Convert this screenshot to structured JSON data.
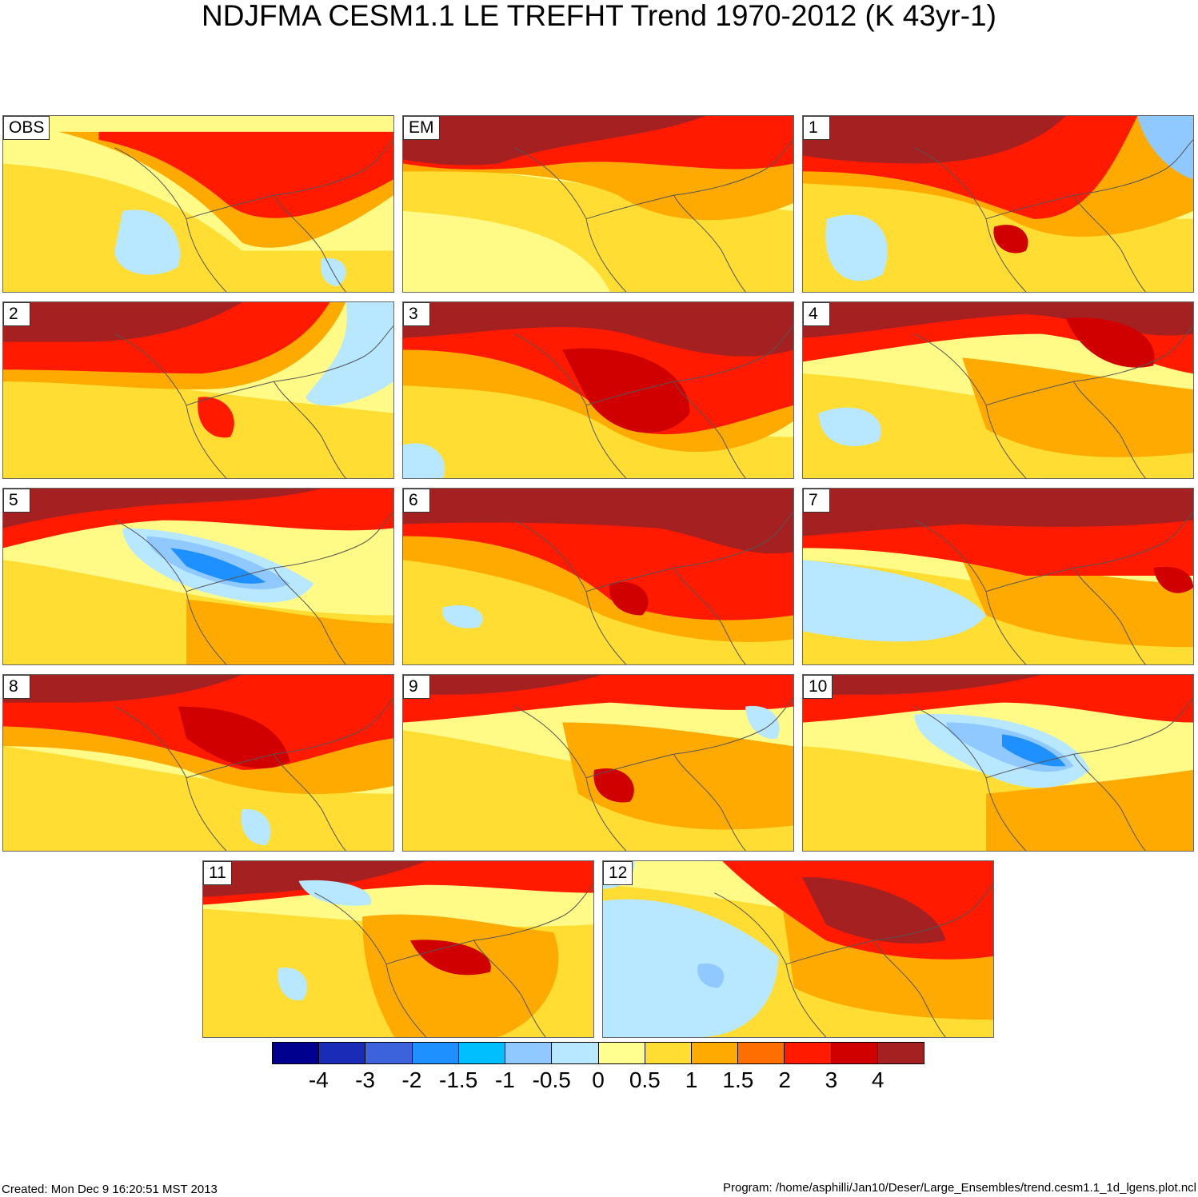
{
  "title": "NDJFMA CESM1.1 LE TREFHT Trend 1970-2012 (K 43yr-1)",
  "panels": [
    {
      "label": "OBS"
    },
    {
      "label": "EM"
    },
    {
      "label": "1"
    },
    {
      "label": "2"
    },
    {
      "label": "3"
    },
    {
      "label": "4"
    },
    {
      "label": "5"
    },
    {
      "label": "6"
    },
    {
      "label": "7"
    },
    {
      "label": "8"
    },
    {
      "label": "9"
    },
    {
      "label": "10"
    },
    {
      "label": "11"
    },
    {
      "label": "12"
    }
  ],
  "colorbar": {
    "colors": [
      "#00008f",
      "#1a2bb8",
      "#3d63dc",
      "#1e90ff",
      "#00bfff",
      "#8fc9ff",
      "#b8e8ff",
      "#ffff8f",
      "#ffdd33",
      "#ffaa00",
      "#ff6e00",
      "#ff1a00",
      "#d10000",
      "#a52121"
    ],
    "tick_labels": [
      "-4",
      "-3",
      "-2",
      "-1.5",
      "-1",
      "-0.5",
      "0",
      "0.5",
      "1",
      "1.5",
      "2",
      "3",
      "4"
    ]
  },
  "footer": {
    "created": "Created: Mon Dec  9 16:20:51 MST 2013",
    "program": "Program: /home/asphilli/Jan10/Deser/Large_Ensembles/trend.cesm1.1_1d_lgens.plot.ncl"
  }
}
